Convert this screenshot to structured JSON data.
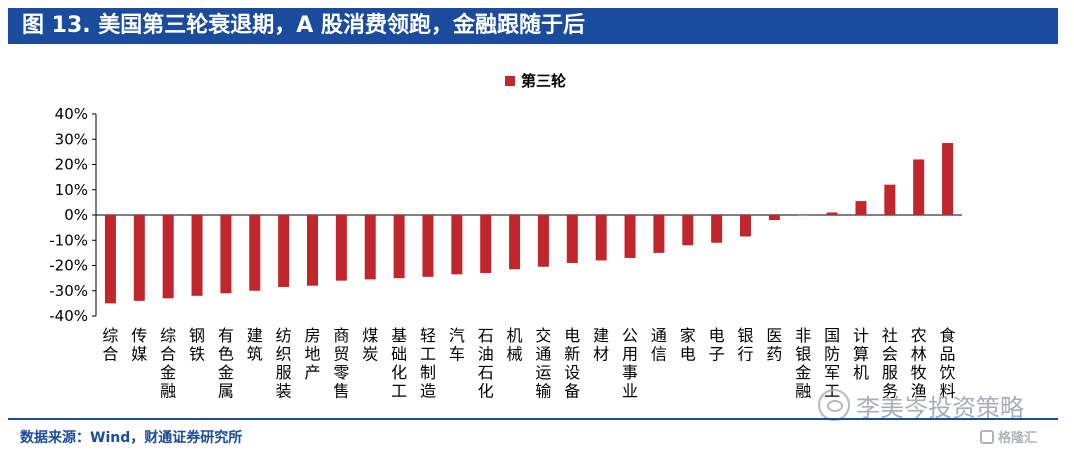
{
  "header": {
    "title": "图 13. 美国第三轮衰退期，A 股消费领跑，金融跟随于后"
  },
  "footer": {
    "source": "数据来源：Wind，财通证券研究所"
  },
  "watermark": {
    "text": "李美岑投资策略"
  },
  "logo": {
    "text": "格隆汇"
  },
  "colors": {
    "title_bar": "#1b4b9c",
    "bar": "#c0262c",
    "source_text": "#1b4b9c"
  },
  "chart_data": {
    "type": "bar",
    "legend": {
      "position": "top-center",
      "entries": [
        "第三轮"
      ]
    },
    "ylim": [
      -0.4,
      0.4
    ],
    "yticks": [
      0.4,
      0.3,
      0.2,
      0.1,
      0,
      -0.1,
      -0.2,
      -0.3,
      -0.4
    ],
    "ytick_labels": [
      "40%",
      "30%",
      "20%",
      "10%",
      "0%",
      "-10%",
      "-20%",
      "-30%",
      "-40%"
    ],
    "categories": [
      "综合",
      "传媒",
      "综合金融",
      "钢铁",
      "有色金属",
      "建筑",
      "纺织服装",
      "房地产",
      "商贸零售",
      "煤炭",
      "基础化工",
      "轻工制造",
      "汽车",
      "石油石化",
      "机械",
      "交通运输",
      "电新设备",
      "建材",
      "公用事业",
      "通信",
      "家电",
      "电子",
      "银行",
      "医药",
      "非银金融",
      "国防军工",
      "计算机",
      "社会服务",
      "农林牧渔",
      "食品饮料"
    ],
    "series": [
      {
        "name": "第三轮",
        "values": [
          -0.35,
          -0.34,
          -0.33,
          -0.32,
          -0.31,
          -0.3,
          -0.285,
          -0.28,
          -0.26,
          -0.255,
          -0.25,
          -0.245,
          -0.235,
          -0.23,
          -0.215,
          -0.205,
          -0.19,
          -0.18,
          -0.17,
          -0.15,
          -0.12,
          -0.11,
          -0.085,
          -0.02,
          0.0,
          0.01,
          0.055,
          0.12,
          0.22,
          0.285
        ]
      }
    ],
    "xlabel": "",
    "ylabel": "",
    "grid": false
  }
}
